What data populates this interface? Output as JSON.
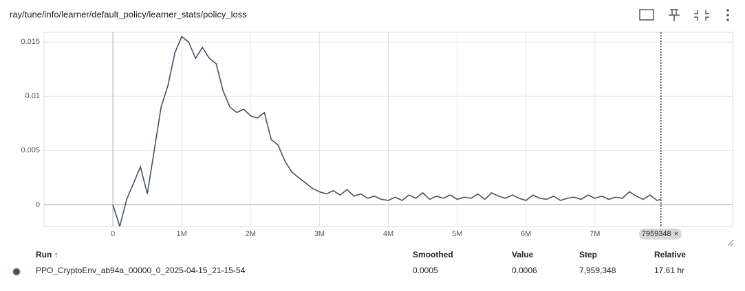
{
  "header": {
    "title": "ray/tune/info/learner/default_policy/learner_stats/policy_loss"
  },
  "chart_data": {
    "type": "line",
    "x": [
      0,
      100000,
      200000,
      300000,
      400000,
      500000,
      600000,
      700000,
      800000,
      900000,
      1000000,
      1100000,
      1200000,
      1300000,
      1400000,
      1500000,
      1600000,
      1700000,
      1800000,
      1900000,
      2000000,
      2100000,
      2200000,
      2300000,
      2400000,
      2500000,
      2600000,
      2700000,
      2800000,
      2900000,
      3000000,
      3100000,
      3200000,
      3300000,
      3400000,
      3500000,
      3600000,
      3700000,
      3800000,
      3900000,
      4000000,
      4100000,
      4200000,
      4300000,
      4400000,
      4500000,
      4600000,
      4700000,
      4800000,
      4900000,
      5000000,
      5100000,
      5200000,
      5300000,
      5400000,
      5500000,
      5600000,
      5700000,
      5800000,
      5900000,
      6000000,
      6100000,
      6200000,
      6300000,
      6400000,
      6500000,
      6600000,
      6700000,
      6800000,
      6900000,
      7000000,
      7100000,
      7200000,
      7300000,
      7400000,
      7500000,
      7600000,
      7700000,
      7800000,
      7900000,
      7959348
    ],
    "series": [
      {
        "name": "PPO_CryptoEnv_ab94a_00000_0_2025-04-15_21-15-54",
        "color": "#425066",
        "values": [
          0,
          -0.002,
          0.0005,
          0.002,
          0.0035,
          0.001,
          0.005,
          0.009,
          0.011,
          0.014,
          0.0155,
          0.015,
          0.0135,
          0.0145,
          0.0135,
          0.013,
          0.0105,
          0.009,
          0.0085,
          0.0088,
          0.0082,
          0.008,
          0.0085,
          0.006,
          0.0055,
          0.004,
          0.003,
          0.0025,
          0.002,
          0.0015,
          0.0012,
          0.001,
          0.0013,
          0.0009,
          0.0014,
          0.0008,
          0.001,
          0.0006,
          0.0008,
          0.0005,
          0.0004,
          0.0007,
          0.0004,
          0.0009,
          0.0006,
          0.0011,
          0.0005,
          0.0008,
          0.0006,
          0.0009,
          0.0005,
          0.0007,
          0.0006,
          0.001,
          0.0005,
          0.0011,
          0.0008,
          0.0006,
          0.0009,
          0.0006,
          0.0004,
          0.0009,
          0.0006,
          0.0005,
          0.0008,
          0.0004,
          0.0006,
          0.0007,
          0.0005,
          0.0009,
          0.0006,
          0.0008,
          0.0005,
          0.0007,
          0.0006,
          0.0012,
          0.0008,
          0.0005,
          0.0009,
          0.0004,
          0.0005
        ]
      }
    ],
    "xlim": [
      -1000000,
      9000000
    ],
    "xticks": [
      0,
      {
        "value": 1000000,
        "label": "1M"
      },
      {
        "value": 2000000,
        "label": "2M"
      },
      {
        "value": 3000000,
        "label": "3M"
      },
      {
        "value": 4000000,
        "label": "4M"
      },
      {
        "value": 5000000,
        "label": "5M"
      },
      {
        "value": 6000000,
        "label": "6M"
      },
      {
        "value": 7000000,
        "label": "7M"
      }
    ],
    "ylim": [
      -0.002,
      0.0159
    ],
    "yticks": [
      0,
      0.005,
      0.01,
      0.015
    ],
    "grid": true,
    "cursor_x": 7959348
  },
  "table": {
    "columns": [
      "Run ↑",
      "Smoothed",
      "Value",
      "Step",
      "Relative"
    ],
    "rows": [
      [
        "PPO_CryptoEnv_ab94a_00000_0_2025-04-15_21-15-54",
        "0.0005",
        "0.0006",
        "7,959,348",
        "17.61 hr"
      ]
    ]
  }
}
